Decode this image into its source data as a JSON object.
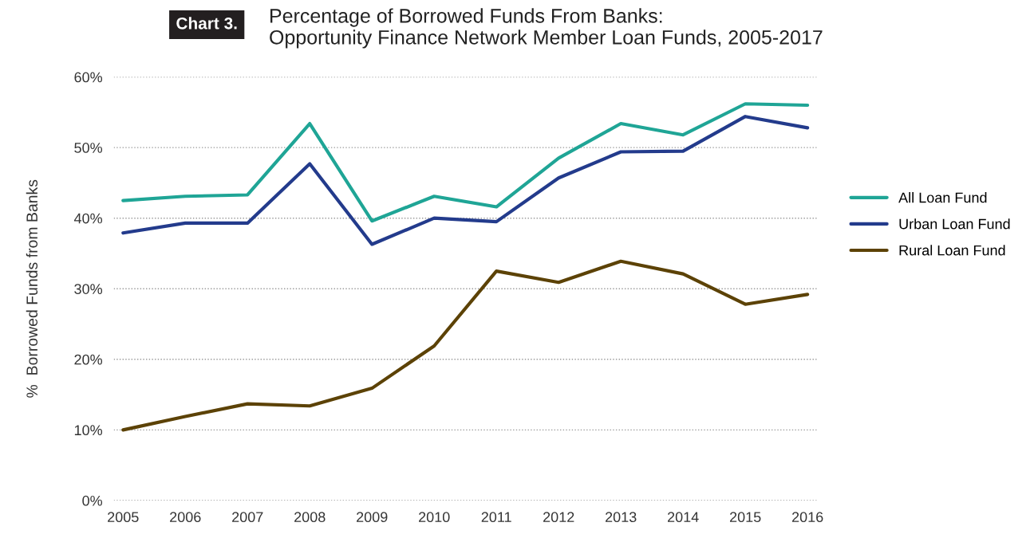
{
  "chart_data": {
    "type": "line",
    "title": "Percentage of Borrowed Funds From Banks:\nOpportunity Finance Network Member Loan Funds, 2005-2017",
    "annotations": [
      "Chart 3."
    ],
    "ylabel": "%  Borrowed Funds from Banks",
    "categories": [
      "2005",
      "2006",
      "2007",
      "2008",
      "2009",
      "2010",
      "2011",
      "2012",
      "2013",
      "2014",
      "2015",
      "2016"
    ],
    "series": [
      {
        "name": "All Loan Fund",
        "color": "#1fa596",
        "values": [
          42.5,
          43.1,
          43.3,
          53.4,
          39.6,
          43.1,
          41.6,
          48.5,
          53.4,
          51.8,
          56.2,
          56.0
        ]
      },
      {
        "name": "Urban Loan Fund",
        "color": "#233b8c",
        "values": [
          37.9,
          39.3,
          39.3,
          47.7,
          36.3,
          40.0,
          39.5,
          45.7,
          49.4,
          49.5,
          54.4,
          52.8
        ]
      },
      {
        "name": "Rural Loan Fund",
        "color": "#5c4206",
        "values": [
          10.0,
          11.9,
          13.7,
          13.4,
          15.9,
          21.9,
          32.5,
          30.9,
          33.9,
          32.1,
          27.8,
          29.2
        ]
      }
    ],
    "ylim": [
      0,
      60
    ],
    "yticks": [
      {
        "value": 0,
        "label": "0%"
      },
      {
        "value": 10,
        "label": "10%"
      },
      {
        "value": 20,
        "label": "20%"
      },
      {
        "value": 30,
        "label": "30%"
      },
      {
        "value": 40,
        "label": "40%"
      },
      {
        "value": 50,
        "label": "50%"
      },
      {
        "value": 60,
        "label": "60%"
      }
    ],
    "grid": "y",
    "line_style": "solid",
    "legend": "right"
  }
}
